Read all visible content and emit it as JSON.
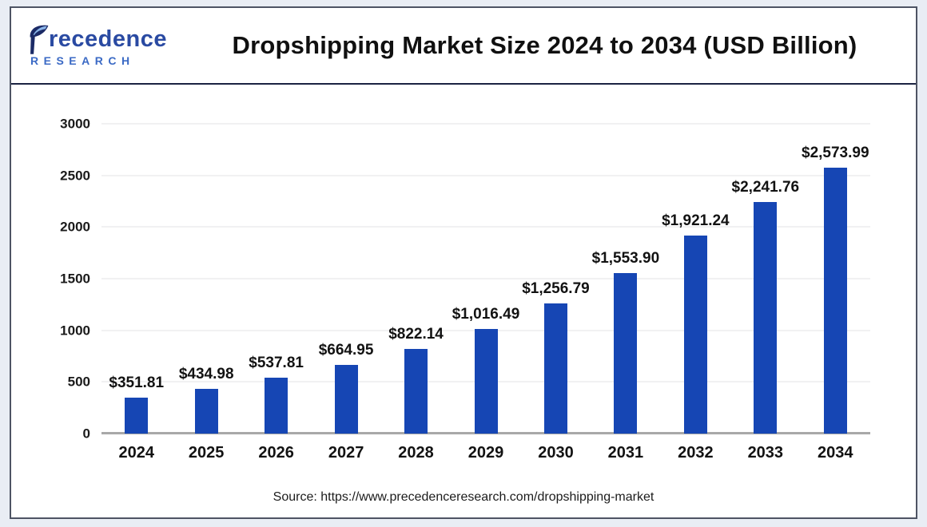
{
  "page": {
    "background": "#e9edf4",
    "card_background": "#ffffff",
    "card_border_color": "#4e5464"
  },
  "logo": {
    "brand": "Precedence Research",
    "word_main": "recedence",
    "word_main_full": "Precedence",
    "word_sub": "RESEARCH",
    "color_primary": "#2a4aa2",
    "color_secondary": "#3b6ac5",
    "leaf_icon": "leaf-p-icon"
  },
  "header": {
    "title": "Dropshipping Market Size 2024 to 2034 (USD Billion)"
  },
  "chart_data": {
    "type": "bar",
    "title": "Dropshipping Market Size 2024 to 2034 (USD Billion)",
    "xlabel": "",
    "ylabel": "",
    "unit": "USD Billion",
    "categories": [
      "2024",
      "2025",
      "2026",
      "2027",
      "2028",
      "2029",
      "2030",
      "2031",
      "2032",
      "2033",
      "2034"
    ],
    "values": [
      351.81,
      434.98,
      537.81,
      664.95,
      822.14,
      1016.49,
      1256.79,
      1553.9,
      1921.24,
      2241.76,
      2573.99
    ],
    "value_labels": [
      "$351.81",
      "$434.98",
      "$537.81",
      "$664.95",
      "$822.14",
      "$1,016.49",
      "$1,256.79",
      "$1,553.90",
      "$1,921.24",
      "$2,241.76",
      "$2,573.99"
    ],
    "ylim": [
      0,
      3000
    ],
    "y_ticks": [
      0,
      500,
      1000,
      1500,
      2000,
      2500,
      3000
    ],
    "grid": true,
    "legend": false,
    "bar_color": "#1646b4",
    "gridline_color": "#f1f1f2",
    "axis_color": "#a8a8a8"
  },
  "footer": {
    "source": "Source: https://www.precedenceresearch.com/dropshipping-market"
  }
}
